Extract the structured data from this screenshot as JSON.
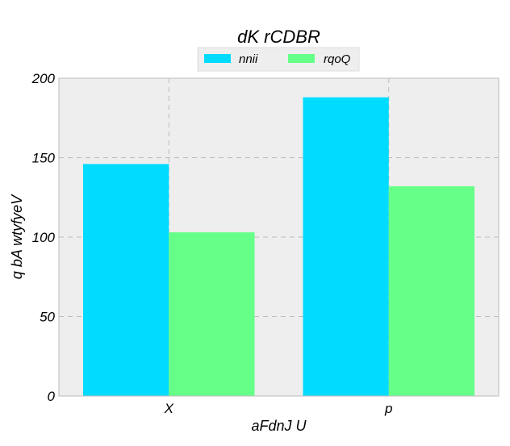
{
  "chart_data": {
    "type": "bar",
    "title": "dK rCDBR",
    "xlabel": "aFdnJ U",
    "ylabel": "q  bA wtyfyeV",
    "categories": [
      "X",
      "p"
    ],
    "series": [
      {
        "name": "nnii",
        "values": [
          146,
          188
        ],
        "color": "#00dcff"
      },
      {
        "name": "rqoQ",
        "values": [
          103,
          132
        ],
        "color": "#66ff88"
      }
    ],
    "ylim": [
      0,
      200
    ],
    "yticks": [
      0,
      50,
      100,
      150,
      200
    ],
    "ytick_labels": [
      "0",
      "50",
      "100",
      "150",
      "200"
    ],
    "grid": true,
    "legend_position": "top-center",
    "plot_background": "#eeeeee",
    "grid_color": "#bbbbbb"
  }
}
